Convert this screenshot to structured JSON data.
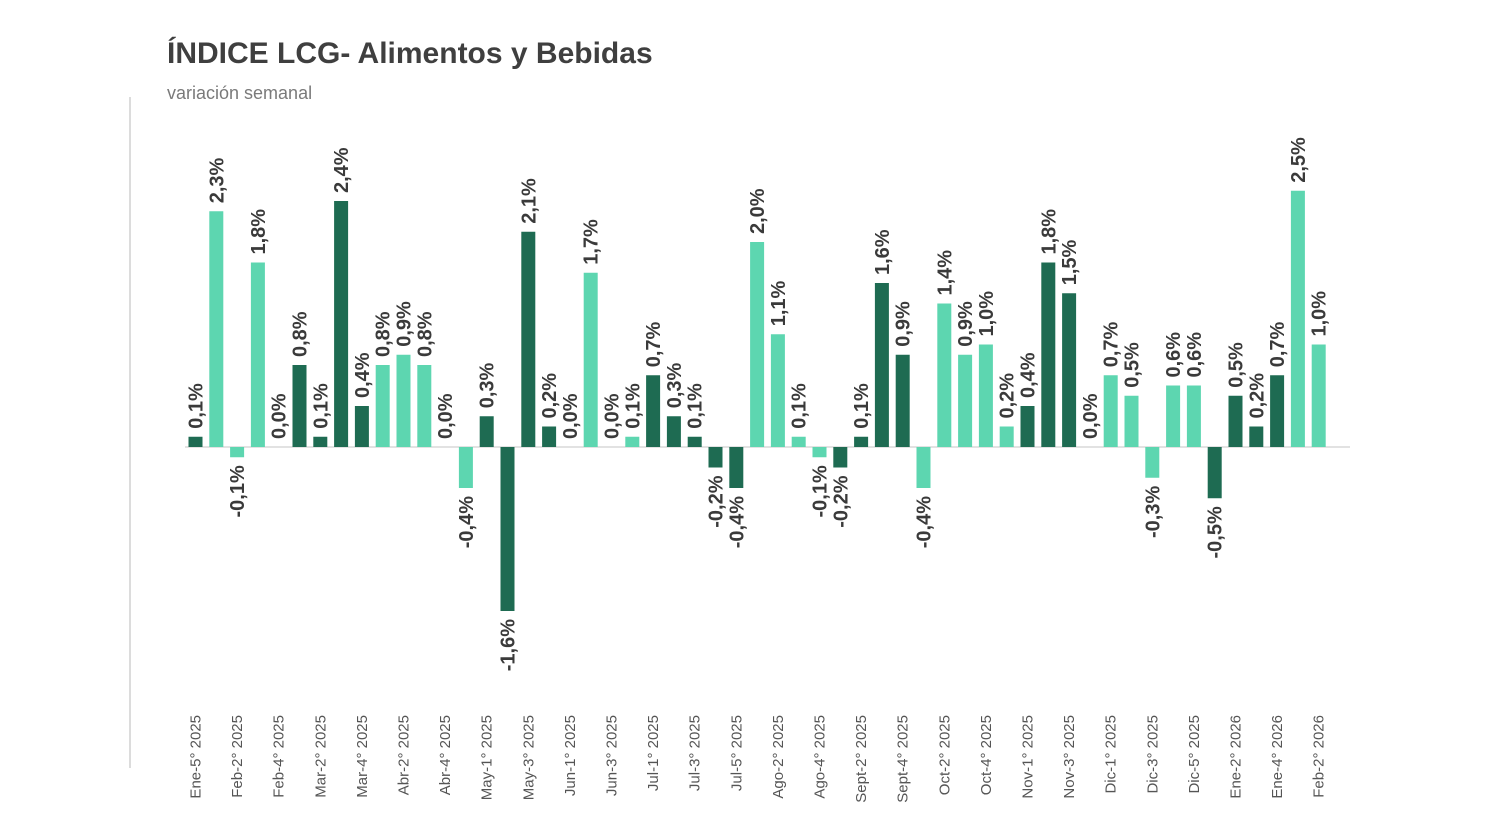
{
  "chart_data": {
    "type": "bar",
    "title": "ÍNDICE LCG- Alimentos y Bebidas",
    "subtitle": "variación semanal",
    "categories": [
      "Ene-5° 2025",
      null,
      "Feb-2° 2025",
      null,
      "Feb-4° 2025",
      null,
      "Mar-2° 2025",
      null,
      "Mar-4° 2025",
      null,
      "Abr-2° 2025",
      null,
      "Abr-4° 2025",
      null,
      "May-1° 2025",
      null,
      "May-3° 2025",
      null,
      "Jun-1° 2025",
      null,
      "Jun-3° 2025",
      null,
      "Jul-1° 2025",
      null,
      "Jul-3° 2025",
      null,
      "Jul-5° 2025",
      null,
      "Ago-2° 2025",
      null,
      "Ago-4° 2025",
      null,
      "Sept-2° 2025",
      null,
      "Sept-4° 2025",
      null,
      "Oct-2° 2025",
      null,
      "Oct-4° 2025",
      null,
      "Nov-1° 2025",
      null,
      "Nov-3° 2025",
      null,
      "Dic-1° 2025",
      null,
      "Dic-3° 2025",
      null,
      "Dic-5° 2025",
      null,
      "Ene-2° 2026",
      null,
      "Ene-4° 2026",
      null,
      "Feb-2° 2026"
    ],
    "values": [
      0.1,
      2.3,
      -0.1,
      1.8,
      0.0,
      0.8,
      0.1,
      2.4,
      0.4,
      0.8,
      0.9,
      0.8,
      0.0,
      -0.4,
      0.3,
      -1.6,
      2.1,
      0.2,
      0.0,
      1.7,
      0.0,
      0.1,
      0.7,
      0.3,
      0.1,
      -0.2,
      -0.4,
      2.0,
      1.1,
      0.1,
      -0.1,
      -0.2,
      0.1,
      1.6,
      0.9,
      -0.4,
      1.4,
      0.9,
      1.0,
      0.2,
      0.4,
      1.8,
      1.5,
      0.0,
      0.7,
      0.5,
      -0.3,
      0.6,
      0.6,
      -0.5,
      0.5,
      0.2,
      0.7,
      2.5,
      1.0
    ],
    "value_labels": [
      "0,1%",
      "2,3%",
      "-0,1%",
      "1,8%",
      "0,0%",
      "0,8%",
      "0,1%",
      "2,4%",
      "0,4%",
      "0,8%",
      "0,9%",
      "0,8%",
      "0,0%",
      "-0,4%",
      "0,3%",
      "-1,6%",
      "2,1%",
      "0,2%",
      "0,0%",
      "1,7%",
      "0,0%",
      "0,1%",
      "0,7%",
      "0,3%",
      "0,1%",
      "-0,2%",
      "-0,4%",
      "2,0%",
      "1,1%",
      "0,1%",
      "-0,1%",
      "-0,2%",
      "0,1%",
      "1,6%",
      "0,9%",
      "-0,4%",
      "1,4%",
      "0,9%",
      "1,0%",
      "0,2%",
      "0,4%",
      "1,8%",
      "1,5%",
      "0,0%",
      "0,7%",
      "0,5%",
      "-0,3%",
      "0,6%",
      "0,6%",
      "-0,5%",
      "0,5%",
      "0,2%",
      "0,7%",
      "2,5%",
      "1,0%"
    ],
    "colors": [
      "#1e6b52",
      "#5dd6b0",
      "#5dd6b0",
      "#5dd6b0",
      "#5dd6b0",
      "#1e6b52",
      "#1e6b52",
      "#1e6b52",
      "#1e6b52",
      "#5dd6b0",
      "#5dd6b0",
      "#5dd6b0",
      "#5dd6b0",
      "#5dd6b0",
      "#1e6b52",
      "#1e6b52",
      "#1e6b52",
      "#1e6b52",
      "#5dd6b0",
      "#5dd6b0",
      "#5dd6b0",
      "#5dd6b0",
      "#1e6b52",
      "#1e6b52",
      "#1e6b52",
      "#1e6b52",
      "#1e6b52",
      "#5dd6b0",
      "#5dd6b0",
      "#5dd6b0",
      "#5dd6b0",
      "#1e6b52",
      "#1e6b52",
      "#1e6b52",
      "#1e6b52",
      "#5dd6b0",
      "#5dd6b0",
      "#5dd6b0",
      "#5dd6b0",
      "#5dd6b0",
      "#1e6b52",
      "#1e6b52",
      "#1e6b52",
      "#5dd6b0",
      "#5dd6b0",
      "#5dd6b0",
      "#5dd6b0",
      "#5dd6b0",
      "#5dd6b0",
      "#1e6b52",
      "#1e6b52",
      "#1e6b52",
      "#1e6b52",
      "#5dd6b0",
      "#5dd6b0"
    ]
  }
}
